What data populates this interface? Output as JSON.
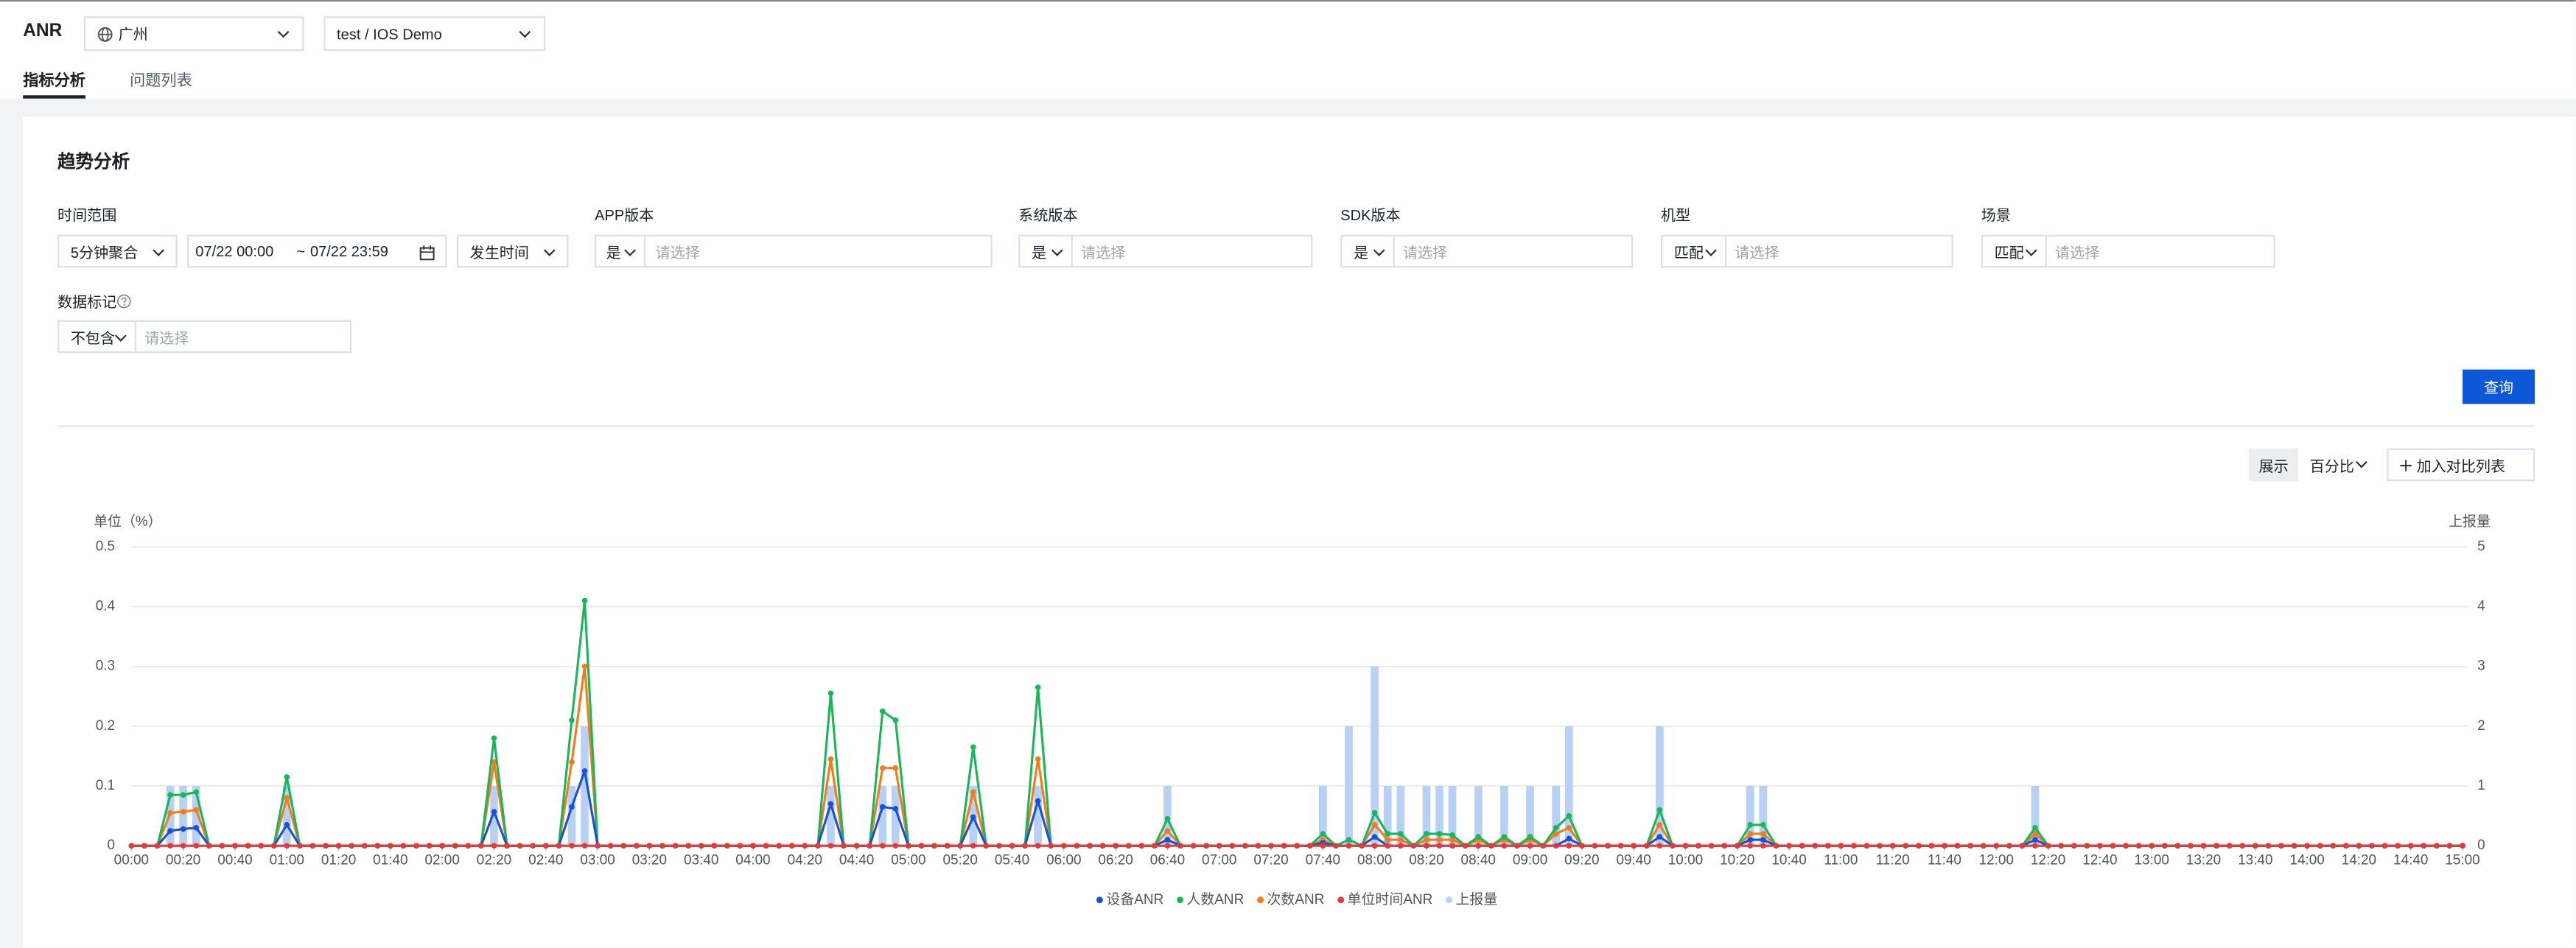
{
  "header": {
    "title": "ANR",
    "region": "广州",
    "project": "test / IOS Demo"
  },
  "tabs": [
    "指标分析",
    "问题列表"
  ],
  "section_title": "趋势分析",
  "filters": {
    "time_range": {
      "label": "时间范围",
      "aggregation": "5分钟聚合",
      "start": "07/22 00:00",
      "separator": "~",
      "end": "07/22 23:59",
      "time_type": "发生时间"
    },
    "app_version": {
      "label": "APP版本",
      "operator": "是",
      "placeholder": "请选择"
    },
    "system_version": {
      "label": "系统版本",
      "operator": "是",
      "placeholder": "请选择"
    },
    "sdk_version": {
      "label": "SDK版本",
      "operator": "是",
      "placeholder": "请选择"
    },
    "model": {
      "label": "机型",
      "operator": "匹配",
      "placeholder": "请选择"
    },
    "scene": {
      "label": "场景",
      "operator": "匹配",
      "placeholder": "请选择"
    },
    "data_mark": {
      "label": "数据标记",
      "operator": "不包含",
      "placeholder": "请选择"
    }
  },
  "buttons": {
    "query": "查询",
    "display": "展示",
    "display_mode": "百分比",
    "compare": "加入对比列表"
  },
  "chart_data": {
    "type": "line",
    "y_label": "单位（%）",
    "y2_label": "上报量",
    "ylim": [
      0,
      0.5
    ],
    "yticks": [
      0,
      0.1,
      0.2,
      0.3,
      0.4,
      0.5
    ],
    "y2lim": [
      0,
      5
    ],
    "y2ticks": [
      0,
      1,
      2,
      3,
      4,
      5
    ],
    "grid": true,
    "categories": [
      "00:00",
      null,
      null,
      null,
      "00:20",
      null,
      null,
      null,
      "00:40",
      null,
      null,
      null,
      "01:00",
      null,
      null,
      null,
      "01:20",
      null,
      null,
      null,
      "01:40",
      null,
      null,
      null,
      "02:00",
      null,
      null,
      null,
      "02:20",
      null,
      null,
      null,
      "02:40",
      null,
      null,
      null,
      "03:00",
      null,
      null,
      null,
      "03:20",
      null,
      null,
      null,
      "03:40",
      null,
      null,
      null,
      "04:00",
      null,
      null,
      null,
      "04:20",
      null,
      null,
      null,
      "04:40",
      null,
      null,
      null,
      "05:00",
      null,
      null,
      null,
      "05:20",
      null,
      null,
      null,
      "05:40",
      null,
      null,
      null,
      "06:00",
      null,
      null,
      null,
      "06:20",
      null,
      null,
      null,
      "06:40",
      null,
      null,
      null,
      "07:00",
      null,
      null,
      null,
      "07:20",
      null,
      null,
      null,
      "07:40",
      null,
      null,
      null,
      "08:00",
      null,
      null,
      null,
      "08:20",
      null,
      null,
      null,
      "08:40",
      null,
      null,
      null,
      "09:00",
      null,
      null,
      null,
      "09:20",
      null,
      null,
      null,
      "09:40",
      null,
      null,
      null,
      "10:00",
      null,
      null,
      null,
      "10:20",
      null,
      null,
      null,
      "10:40",
      null,
      null,
      null,
      "11:00",
      null,
      null,
      null,
      "11:20",
      null,
      null,
      null,
      "11:40",
      null,
      null,
      null,
      "12:00",
      null,
      null,
      null,
      "12:20",
      null,
      null,
      null,
      "12:40",
      null,
      null,
      null,
      "13:00",
      null,
      null,
      null,
      "13:20",
      null,
      null,
      null,
      "13:40",
      null,
      null,
      null,
      "14:00",
      null,
      null,
      null,
      "14:20",
      null,
      null,
      null,
      "14:40",
      null,
      null,
      null,
      "15:00"
    ],
    "series": [
      {
        "name": "上报量",
        "type": "bar",
        "axis": "y2",
        "color": "#b9d0f5",
        "values": [
          0,
          0,
          0,
          1,
          1,
          1,
          0,
          0,
          0,
          0,
          0,
          0,
          1,
          0,
          0,
          0,
          0,
          0,
          0,
          0,
          0,
          0,
          0,
          0,
          0,
          0,
          0,
          0,
          1,
          0,
          0,
          0,
          0,
          0,
          1,
          2,
          0,
          0,
          0,
          0,
          0,
          0,
          0,
          0,
          0,
          0,
          0,
          0,
          0,
          0,
          0,
          0,
          0,
          0,
          1,
          0,
          0,
          0,
          1,
          1,
          0,
          0,
          0,
          0,
          0,
          1,
          0,
          0,
          0,
          0,
          1,
          0,
          0,
          0,
          0,
          0,
          0,
          0,
          0,
          0,
          1,
          0,
          0,
          0,
          0,
          0,
          0,
          0,
          0,
          0,
          0,
          0,
          1,
          0,
          2,
          0,
          3,
          1,
          1,
          0,
          1,
          1,
          1,
          0,
          1,
          0,
          1,
          0,
          1,
          0,
          1,
          2,
          0,
          0,
          0,
          0,
          0,
          0,
          2,
          0,
          0,
          0,
          0,
          0,
          0,
          1,
          1,
          0,
          0,
          0,
          0,
          0,
          0,
          0,
          0,
          0,
          0,
          0,
          0,
          0,
          0,
          0,
          0,
          0,
          0,
          0,
          0,
          1,
          0,
          0,
          0,
          0,
          0,
          0,
          0,
          0,
          0,
          0,
          0,
          0,
          0,
          0,
          0,
          0,
          0,
          0,
          0,
          0,
          0,
          0,
          0,
          0,
          0,
          0,
          0,
          0,
          0,
          0,
          0,
          0,
          0
        ]
      },
      {
        "name": "次数ANR",
        "color": "#f07d1a",
        "values": [
          0,
          0,
          0,
          0.055,
          0.057,
          0.06,
          0,
          0,
          0,
          0,
          0,
          0,
          0.08,
          0,
          0,
          0,
          0,
          0,
          0,
          0,
          0,
          0,
          0,
          0,
          0,
          0,
          0,
          0,
          0.14,
          0,
          0,
          0,
          0,
          0,
          0.14,
          0.3,
          0,
          0,
          0,
          0,
          0,
          0,
          0,
          0,
          0,
          0,
          0,
          0,
          0,
          0,
          0,
          0,
          0,
          0,
          0.145,
          0,
          0,
          0,
          0.13,
          0.13,
          0,
          0,
          0,
          0,
          0,
          0.09,
          0,
          0,
          0,
          0,
          0.145,
          0,
          0,
          0,
          0,
          0,
          0,
          0,
          0,
          0,
          0.025,
          0,
          0,
          0,
          0,
          0,
          0,
          0,
          0,
          0,
          0,
          0,
          0.01,
          0,
          0,
          0,
          0.035,
          0.01,
          0.01,
          0,
          0.01,
          0.01,
          0.01,
          0,
          0.01,
          0,
          0.01,
          0,
          0.01,
          0,
          0.02,
          0.03,
          0,
          0,
          0,
          0,
          0,
          0,
          0.035,
          0,
          0,
          0,
          0,
          0,
          0,
          0.02,
          0.02,
          0,
          0,
          0,
          0,
          0,
          0,
          0,
          0,
          0,
          0,
          0,
          0,
          0,
          0,
          0,
          0,
          0,
          0,
          0,
          0,
          0.02,
          0,
          0,
          0,
          0,
          0,
          0,
          0,
          0,
          0,
          0,
          0,
          0,
          0,
          0,
          0,
          0,
          0,
          0,
          0,
          0,
          0,
          0,
          0,
          0,
          0,
          0,
          0,
          0,
          0,
          0,
          0,
          0,
          0
        ]
      },
      {
        "name": "人数ANR",
        "color": "#1bb55c",
        "values": [
          0,
          0,
          0,
          0.085,
          0.085,
          0.09,
          0,
          0,
          0,
          0,
          0,
          0,
          0.115,
          0,
          0,
          0,
          0,
          0,
          0,
          0,
          0,
          0,
          0,
          0,
          0,
          0,
          0,
          0,
          0.18,
          0,
          0,
          0,
          0,
          0,
          0.21,
          0.41,
          0,
          0,
          0,
          0,
          0,
          0,
          0,
          0,
          0,
          0,
          0,
          0,
          0,
          0,
          0,
          0,
          0,
          0,
          0.255,
          0,
          0,
          0,
          0.225,
          0.21,
          0,
          0,
          0,
          0,
          0,
          0.165,
          0,
          0,
          0,
          0,
          0.265,
          0,
          0,
          0,
          0,
          0,
          0,
          0,
          0,
          0,
          0.045,
          0,
          0,
          0,
          0,
          0,
          0,
          0,
          0,
          0,
          0,
          0,
          0.02,
          0,
          0.01,
          0,
          0.055,
          0.02,
          0.02,
          0,
          0.02,
          0.02,
          0.018,
          0,
          0.015,
          0,
          0.015,
          0,
          0.015,
          0,
          0.03,
          0.05,
          0,
          0,
          0,
          0,
          0,
          0,
          0.06,
          0,
          0,
          0,
          0,
          0,
          0,
          0.035,
          0.035,
          0,
          0,
          0,
          0,
          0,
          0,
          0,
          0,
          0,
          0,
          0,
          0,
          0,
          0,
          0,
          0,
          0,
          0,
          0,
          0,
          0.03,
          0,
          0,
          0,
          0,
          0,
          0,
          0,
          0,
          0,
          0,
          0,
          0,
          0,
          0,
          0,
          0,
          0,
          0,
          0,
          0,
          0,
          0,
          0,
          0,
          0,
          0,
          0,
          0,
          0,
          0,
          0,
          0,
          0
        ]
      },
      {
        "name": "设备ANR",
        "color": "#1a4fd6",
        "values": [
          0,
          0,
          0,
          0.025,
          0.028,
          0.03,
          0,
          0,
          0,
          0,
          0,
          0,
          0.035,
          0,
          0,
          0,
          0,
          0,
          0,
          0,
          0,
          0,
          0,
          0,
          0,
          0,
          0,
          0,
          0.057,
          0,
          0,
          0,
          0,
          0,
          0.065,
          0.125,
          0,
          0,
          0,
          0,
          0,
          0,
          0,
          0,
          0,
          0,
          0,
          0,
          0,
          0,
          0,
          0,
          0,
          0,
          0.07,
          0,
          0,
          0,
          0.065,
          0.062,
          0,
          0,
          0,
          0,
          0,
          0.048,
          0,
          0,
          0,
          0,
          0.075,
          0,
          0,
          0,
          0,
          0,
          0,
          0,
          0,
          0,
          0.01,
          0,
          0,
          0,
          0,
          0,
          0,
          0,
          0,
          0,
          0,
          0,
          0.005,
          0,
          0,
          0,
          0.015,
          0,
          0,
          0,
          0,
          0,
          0,
          0,
          0,
          0,
          0,
          0,
          0,
          0,
          0,
          0.012,
          0,
          0,
          0,
          0,
          0,
          0,
          0.015,
          0,
          0,
          0,
          0,
          0,
          0,
          0.01,
          0.01,
          0,
          0,
          0,
          0,
          0,
          0,
          0,
          0,
          0,
          0,
          0,
          0,
          0,
          0,
          0,
          0,
          0,
          0,
          0,
          0,
          0.01,
          0,
          0,
          0,
          0,
          0,
          0,
          0,
          0,
          0,
          0,
          0,
          0,
          0,
          0,
          0,
          0,
          0,
          0,
          0,
          0,
          0,
          0,
          0,
          0,
          0,
          0,
          0,
          0,
          0,
          0,
          0,
          0,
          0
        ]
      },
      {
        "name": "单位时间ANR",
        "color": "#e5393b",
        "values": [
          0,
          0,
          0,
          0,
          0,
          0,
          0,
          0,
          0,
          0,
          0,
          0,
          0,
          0,
          0,
          0,
          0,
          0,
          0,
          0,
          0,
          0,
          0,
          0,
          0,
          0,
          0,
          0,
          0,
          0,
          0,
          0,
          0,
          0,
          0,
          0,
          0,
          0,
          0,
          0,
          0,
          0,
          0,
          0,
          0,
          0,
          0,
          0,
          0,
          0,
          0,
          0,
          0,
          0,
          0,
          0,
          0,
          0,
          0,
          0,
          0,
          0,
          0,
          0,
          0,
          0,
          0,
          0,
          0,
          0,
          0,
          0,
          0,
          0,
          0,
          0,
          0,
          0,
          0,
          0,
          0,
          0,
          0,
          0,
          0,
          0,
          0,
          0,
          0,
          0,
          0,
          0,
          0,
          0,
          0,
          0,
          0,
          0,
          0,
          0,
          0,
          0,
          0,
          0,
          0,
          0,
          0,
          0,
          0,
          0,
          0,
          0,
          0,
          0,
          0,
          0,
          0,
          0,
          0,
          0,
          0,
          0,
          0,
          0,
          0,
          0,
          0,
          0,
          0,
          0,
          0,
          0,
          0,
          0,
          0,
          0,
          0,
          0,
          0,
          0,
          0,
          0,
          0,
          0,
          0,
          0,
          0,
          0,
          0,
          0,
          0,
          0,
          0,
          0,
          0,
          0,
          0,
          0,
          0,
          0,
          0,
          0,
          0,
          0,
          0,
          0,
          0,
          0,
          0,
          0,
          0,
          0,
          0,
          0,
          0,
          0,
          0,
          0,
          0,
          0,
          0
        ]
      }
    ],
    "legend_order": [
      3,
      2,
      1,
      4,
      0
    ]
  }
}
